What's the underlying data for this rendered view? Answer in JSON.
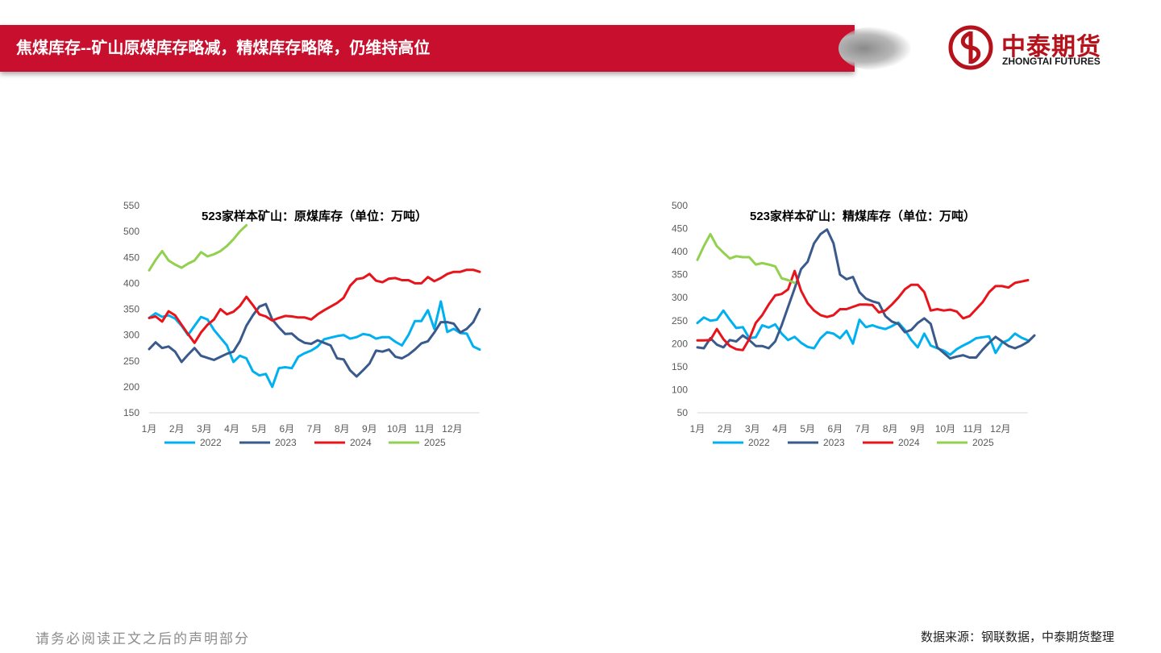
{
  "header": {
    "title": "焦煤库存--矿山原煤库存略减，精煤库存略降，仍维持高位"
  },
  "logo": {
    "name_cn": "中泰期货",
    "name_en": "ZHONGTAI FUTURES"
  },
  "footer": {
    "disclaimer": "请务必阅读正文之后的声明部分",
    "source": "数据来源：钢联数据，中泰期货整理"
  },
  "colors": {
    "2022": "#00b0f0",
    "2023": "#3a5a8c",
    "2024": "#e8141b",
    "2025": "#92d050",
    "brand": "#c8102e"
  },
  "chart_data": [
    {
      "type": "line",
      "title": "523家样本矿山：原煤库存（单位：万吨）",
      "x_ticks": [
        "1月",
        "2月",
        "3月",
        "4月",
        "5月",
        "6月",
        "7月",
        "8月",
        "9月",
        "10月",
        "11月",
        "12月"
      ],
      "ylim": [
        150,
        550
      ],
      "yticks": [
        150,
        200,
        250,
        300,
        350,
        400,
        450,
        500,
        550
      ],
      "legend_position": "bottom",
      "series": [
        {
          "name": "2022",
          "values": [
            333,
            342,
            335,
            338,
            332,
            318,
            300,
            318,
            335,
            330,
            310,
            295,
            280,
            248,
            260,
            255,
            230,
            222,
            225,
            200,
            236,
            238,
            236,
            258,
            265,
            270,
            278,
            292,
            295,
            298,
            300,
            293,
            296,
            302,
            300,
            293,
            296,
            296,
            287,
            280,
            300,
            327,
            327,
            348,
            312,
            365,
            306,
            312,
            304,
            303,
            278,
            272
          ]
        },
        {
          "name": "2023",
          "values": [
            273,
            286,
            275,
            278,
            268,
            248,
            262,
            275,
            260,
            256,
            252,
            258,
            264,
            268,
            288,
            318,
            338,
            355,
            360,
            330,
            315,
            302,
            303,
            292,
            285,
            283,
            290,
            285,
            280,
            255,
            253,
            232,
            220,
            232,
            245,
            270,
            268,
            272,
            258,
            255,
            262,
            272,
            284,
            288,
            305,
            325,
            325,
            322,
            305,
            312,
            325,
            350
          ]
        },
        {
          "name": "2024",
          "values": [
            333,
            336,
            326,
            346,
            338,
            320,
            302,
            285,
            305,
            320,
            330,
            350,
            340,
            345,
            356,
            374,
            358,
            340,
            336,
            328,
            333,
            337,
            336,
            334,
            334,
            330,
            340,
            348,
            355,
            362,
            372,
            395,
            408,
            410,
            418,
            405,
            402,
            409,
            410,
            406,
            406,
            400,
            400,
            412,
            404,
            410,
            418,
            422,
            422,
            426,
            426,
            422
          ]
        },
        {
          "name": "2025",
          "values": [
            425,
            445,
            462,
            444,
            436,
            430,
            438,
            444,
            460,
            452,
            456,
            462,
            472,
            485,
            500,
            512
          ]
        }
      ]
    },
    {
      "type": "line",
      "title": "523家样本矿山：精煤库存（单位：万吨）",
      "x_ticks": [
        "1月",
        "2月",
        "3月",
        "4月",
        "5月",
        "6月",
        "7月",
        "8月",
        "9月",
        "10月",
        "11月",
        "12月"
      ],
      "ylim": [
        50,
        500
      ],
      "yticks": [
        50,
        100,
        150,
        200,
        250,
        300,
        350,
        400,
        450,
        500
      ],
      "legend_position": "bottom",
      "series": [
        {
          "name": "2022",
          "values": [
            245,
            257,
            250,
            252,
            272,
            252,
            234,
            236,
            212,
            214,
            240,
            235,
            242,
            222,
            208,
            215,
            202,
            193,
            190,
            212,
            225,
            222,
            212,
            228,
            200,
            252,
            236,
            240,
            235,
            232,
            238,
            246,
            230,
            208,
            192,
            222,
            196,
            190,
            185,
            176,
            188,
            196,
            203,
            212,
            214,
            216,
            180,
            202,
            208,
            222,
            213,
            207
          ]
        },
        {
          "name": "2023",
          "values": [
            192,
            190,
            212,
            198,
            192,
            208,
            205,
            218,
            208,
            195,
            195,
            190,
            205,
            240,
            280,
            320,
            362,
            378,
            418,
            438,
            448,
            418,
            350,
            340,
            345,
            312,
            298,
            292,
            288,
            260,
            248,
            243,
            225,
            230,
            245,
            255,
            243,
            192,
            180,
            168,
            172,
            175,
            170,
            170,
            187,
            202,
            215,
            205,
            195,
            190,
            196,
            204,
            218
          ]
        },
        {
          "name": "2024",
          "values": [
            207,
            207,
            208,
            232,
            210,
            195,
            188,
            186,
            210,
            245,
            262,
            285,
            305,
            308,
            318,
            358,
            315,
            288,
            272,
            262,
            258,
            262,
            275,
            275,
            280,
            285,
            285,
            284,
            268,
            272,
            285,
            300,
            318,
            328,
            328,
            312,
            272,
            275,
            272,
            274,
            270,
            255,
            260,
            275,
            290,
            312,
            325,
            325,
            322,
            332,
            335,
            338
          ]
        },
        {
          "name": "2025",
          "values": [
            382,
            412,
            438,
            412,
            398,
            385,
            390,
            388,
            388,
            372,
            375,
            372,
            368,
            342,
            338,
            332
          ]
        }
      ]
    }
  ]
}
